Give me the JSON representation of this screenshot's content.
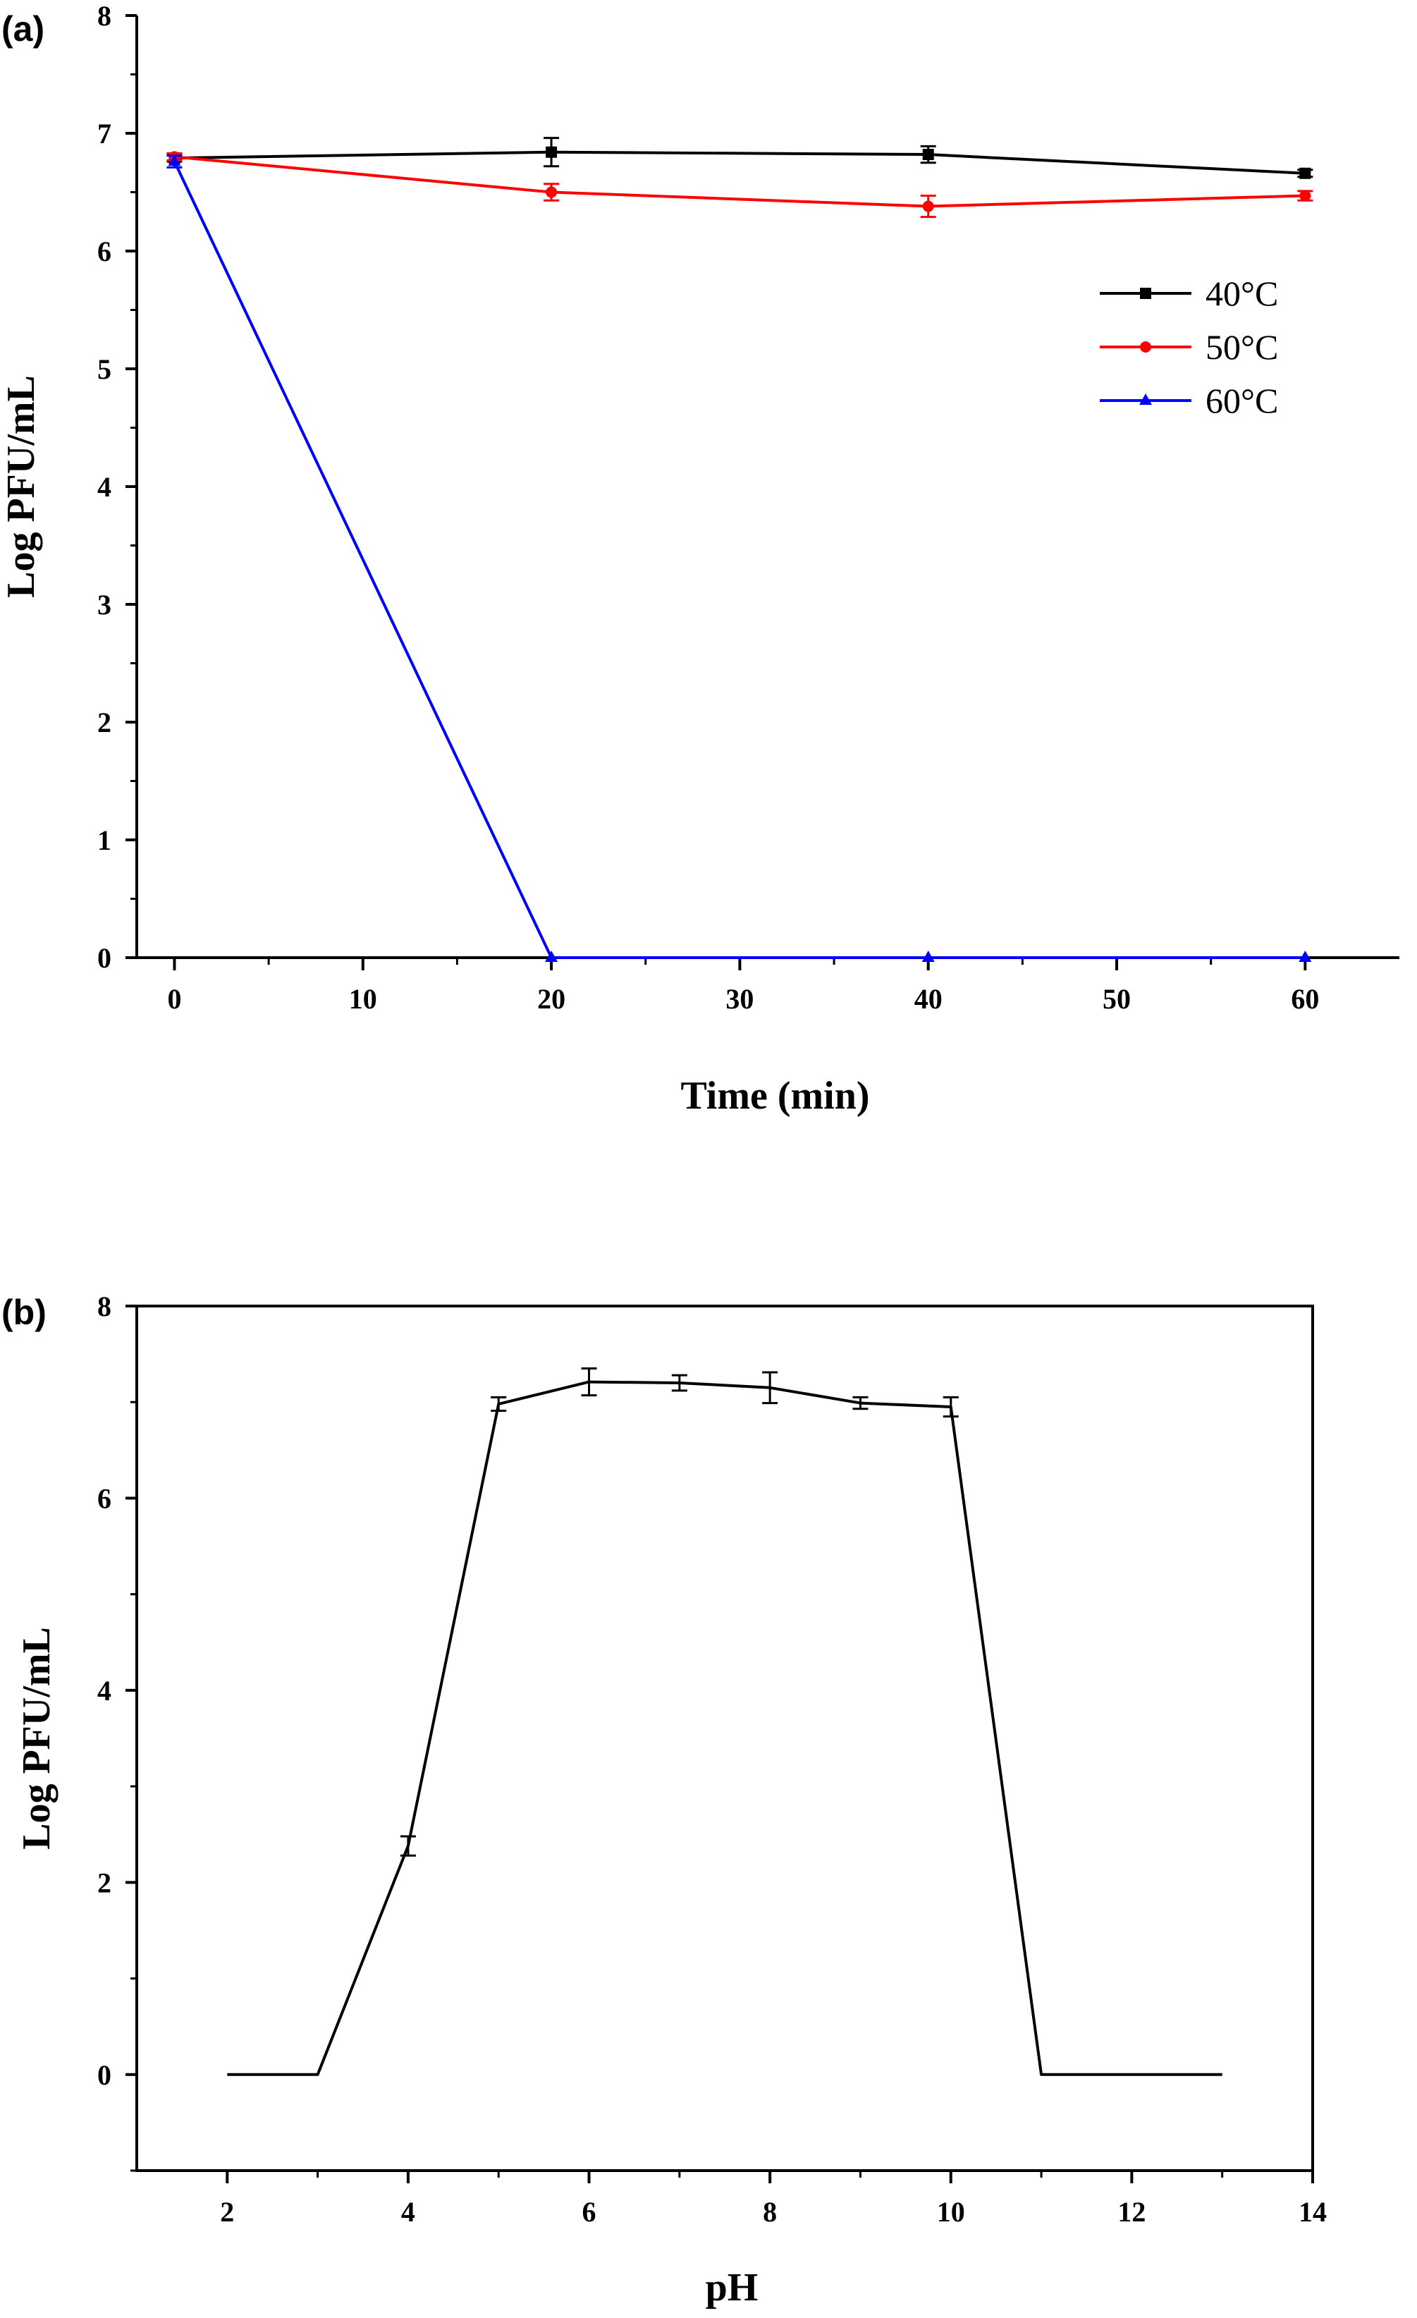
{
  "chart_data": [
    {
      "type": "line",
      "panel_label": "(a)",
      "title": "",
      "xlabel": "Time (min)",
      "ylabel": "Log PFU/mL",
      "xlim": [
        -2,
        65
      ],
      "ylim": [
        0,
        8
      ],
      "x_ticks": [
        0,
        10,
        20,
        30,
        40,
        50,
        60
      ],
      "y_ticks": [
        0,
        1,
        2,
        3,
        4,
        5,
        6,
        7,
        8
      ],
      "legend_position": "right",
      "series": [
        {
          "name": "40°C",
          "color": "#000000",
          "marker": "square",
          "x": [
            0,
            20,
            40,
            60
          ],
          "values": [
            6.79,
            6.84,
            6.82,
            6.66
          ],
          "errors": [
            0.03,
            0.12,
            0.07,
            0.03
          ]
        },
        {
          "name": "50°C",
          "color": "#ff0000",
          "marker": "circle",
          "x": [
            0,
            20,
            40,
            60
          ],
          "values": [
            6.8,
            6.5,
            6.38,
            6.47
          ],
          "errors": [
            0.03,
            0.07,
            0.09,
            0.04
          ]
        },
        {
          "name": "60°C",
          "color": "#0000ff",
          "marker": "triangle",
          "x": [
            0,
            20,
            40,
            60
          ],
          "values": [
            6.76,
            0,
            0,
            0
          ],
          "errors": [
            0.05,
            0,
            0,
            0
          ]
        }
      ]
    },
    {
      "type": "line",
      "panel_label": "(b)",
      "title": "",
      "xlabel": "pH",
      "ylabel": "Log PFU/mL",
      "xlim": [
        1,
        14
      ],
      "ylim": [
        -1,
        8
      ],
      "x_ticks": [
        2,
        4,
        6,
        8,
        10,
        12,
        14
      ],
      "y_ticks": [
        0,
        2,
        4,
        6,
        8
      ],
      "series": [
        {
          "color": "#000000",
          "marker": "none",
          "x": [
            2,
            3,
            4,
            5,
            6,
            7,
            8,
            9,
            10,
            11,
            13
          ],
          "values": [
            0,
            0,
            2.38,
            6.98,
            7.21,
            7.2,
            7.15,
            6.99,
            6.95,
            0,
            0
          ],
          "errors": [
            0,
            0,
            0.1,
            0.07,
            0.14,
            0.08,
            0.16,
            0.06,
            0.1,
            0,
            0
          ]
        }
      ]
    }
  ]
}
